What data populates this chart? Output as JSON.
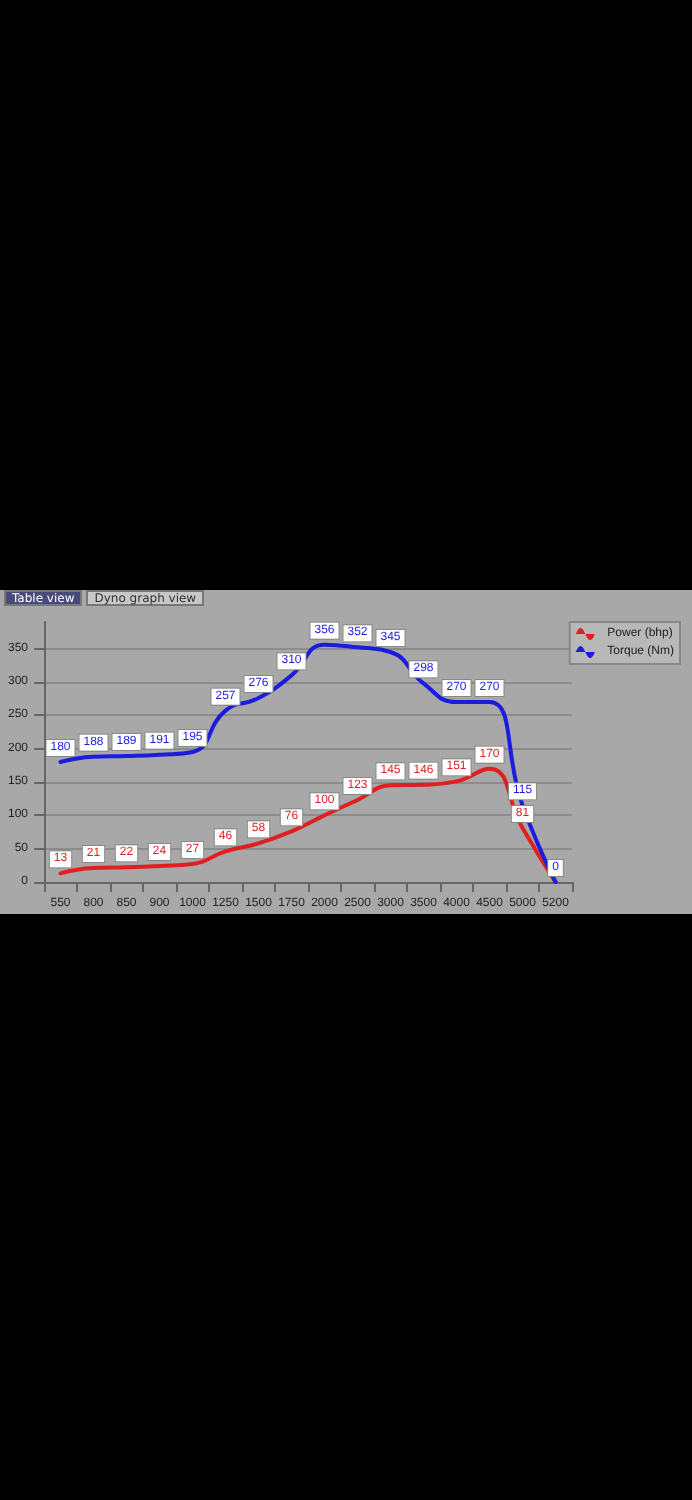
{
  "chart_data": {
    "type": "line",
    "categories": [
      "550",
      "800",
      "850",
      "900",
      "1000",
      "1250",
      "1500",
      "1750",
      "2000",
      "2500",
      "3000",
      "3500",
      "4000",
      "4500",
      "5000",
      "5200"
    ],
    "series": [
      {
        "name": "Power (bhp)",
        "color": "#e02020",
        "values": [
          13,
          21,
          22,
          24,
          27,
          46,
          58,
          76,
          100,
          123,
          145,
          146,
          151,
          170,
          81,
          0
        ],
        "value_labels": [
          "13",
          "21",
          "22",
          "24",
          "27",
          "46",
          "58",
          "76",
          "100",
          "123",
          "145",
          "146",
          "151",
          "170",
          "81",
          null
        ]
      },
      {
        "name": "Torque (Nm)",
        "color": "#1c1ce0",
        "values": [
          180,
          188,
          189,
          191,
          195,
          257,
          276,
          310,
          356,
          352,
          345,
          298,
          270,
          270,
          115,
          0
        ],
        "value_labels": [
          "180",
          "188",
          "189",
          "191",
          "195",
          "257",
          "276",
          "310",
          "356",
          "352",
          "345",
          "298",
          "270",
          "270",
          "115",
          "0"
        ]
      }
    ],
    "ylim": [
      0,
      390
    ],
    "yticks": [
      0,
      50,
      100,
      150,
      200,
      250,
      300,
      350
    ],
    "grid": "y",
    "legend": "top right",
    "marker": "none",
    "line_style": "solid",
    "annotations": [
      "Table view",
      "Dyno graph view"
    ]
  }
}
